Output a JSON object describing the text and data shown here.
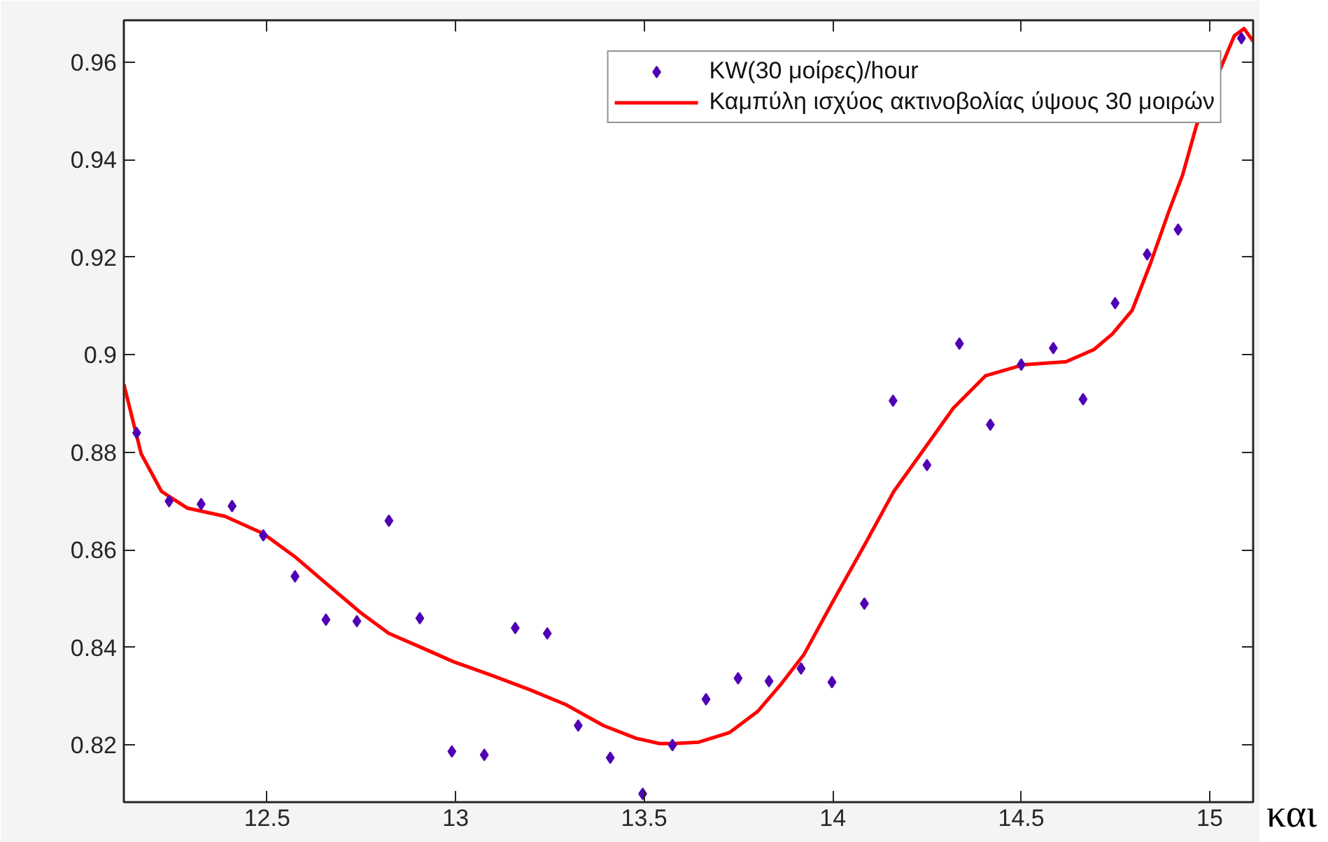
{
  "chart_data": {
    "type": "scatter",
    "xlim": [
      12.12,
      15.115
    ],
    "ylim": [
      0.8083,
      0.9686
    ],
    "xticks": [
      12.5,
      13,
      13.5,
      14,
      14.5,
      15
    ],
    "yticks": [
      0.82,
      0.84,
      0.86,
      0.88,
      0.9,
      0.92,
      0.94,
      0.96
    ],
    "grid": false,
    "legend": "top right",
    "annotations": [
      "και"
    ],
    "series": [
      {
        "name": "KW(30 μοίρες)/hour",
        "marker": "diamond",
        "color": "#5000b4",
        "x": [
          12.154,
          12.24,
          12.325,
          12.407,
          12.49,
          12.574,
          12.656,
          12.738,
          12.823,
          12.905,
          12.99,
          13.076,
          13.158,
          13.243,
          13.325,
          13.41,
          13.496,
          13.575,
          13.664,
          13.749,
          13.831,
          13.916,
          13.998,
          14.084,
          14.16,
          14.25,
          14.336,
          14.418,
          14.5,
          14.585,
          14.664,
          14.749,
          14.834,
          14.916,
          15.084
        ],
        "values": [
          0.884,
          0.87,
          0.8694,
          0.869,
          0.863,
          0.8546,
          0.8457,
          0.8454,
          0.866,
          0.846,
          0.8187,
          0.818,
          0.844,
          0.8429,
          0.824,
          0.8174,
          0.81,
          0.82,
          0.8294,
          0.8337,
          0.8331,
          0.8357,
          0.8329,
          0.849,
          0.8906,
          0.8774,
          0.9023,
          0.8857,
          0.898,
          0.9014,
          0.8909,
          0.9106,
          0.9206,
          0.9257,
          0.9649
        ]
      },
      {
        "name": "Καμπύλη ισχύος ακτινοβολίας ύψους 30 μοιρών",
        "type": "line",
        "line_style": "solid",
        "color": "#ff0000",
        "x": [
          12.12,
          12.166,
          12.22,
          12.288,
          12.388,
          12.489,
          12.574,
          12.66,
          12.749,
          12.823,
          12.909,
          12.994,
          13.095,
          13.195,
          13.292,
          13.392,
          13.478,
          13.541,
          13.578,
          13.645,
          13.727,
          13.801,
          13.864,
          13.924,
          13.998,
          14.087,
          14.162,
          14.236,
          14.32,
          14.405,
          14.507,
          14.619,
          14.693,
          14.742,
          14.794,
          14.842,
          14.89,
          14.928,
          14.965,
          15.065,
          15.091,
          15.115
        ],
        "values": [
          0.894,
          0.8797,
          0.872,
          0.8686,
          0.8669,
          0.8634,
          0.8586,
          0.8529,
          0.8471,
          0.8429,
          0.84,
          0.8371,
          0.8343,
          0.8314,
          0.8283,
          0.824,
          0.8214,
          0.8203,
          0.8203,
          0.8206,
          0.8226,
          0.8269,
          0.8326,
          0.8386,
          0.8491,
          0.8614,
          0.872,
          0.88,
          0.8891,
          0.8957,
          0.898,
          0.8986,
          0.9011,
          0.9043,
          0.9091,
          0.9186,
          0.9291,
          0.9369,
          0.9471,
          0.9654,
          0.9669,
          0.9643
        ]
      }
    ]
  }
}
